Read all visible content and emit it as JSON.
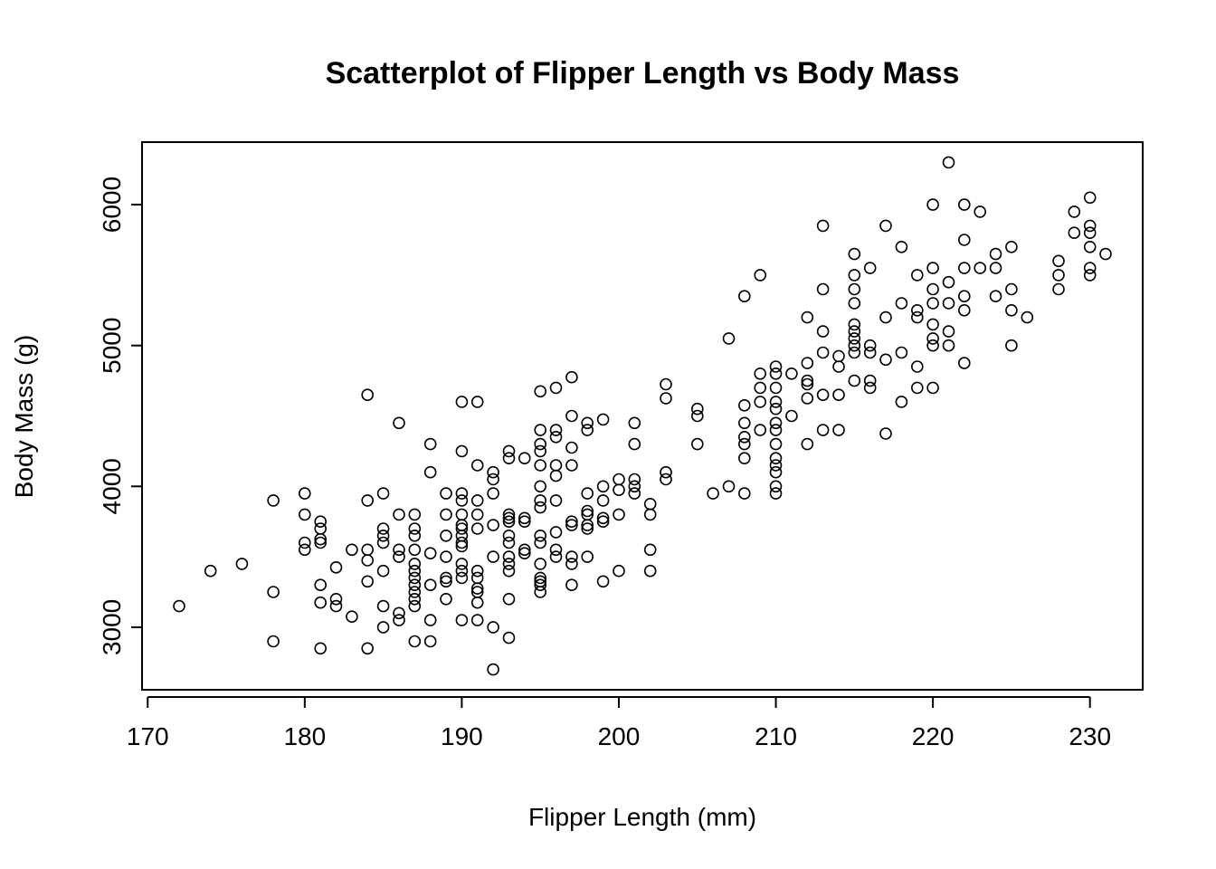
{
  "chart_data": {
    "type": "scatter",
    "title": "Scatterplot of Flipper Length vs Body Mass",
    "xlabel": "Flipper Length (mm)",
    "ylabel": "Body Mass (g)",
    "xlim": [
      172,
      231
    ],
    "ylim": [
      2700,
      6300
    ],
    "xticks": [
      170,
      180,
      190,
      200,
      210,
      220,
      230
    ],
    "yticks": [
      3000,
      4000,
      5000,
      6000
    ],
    "xtick_labels": [
      "170",
      "180",
      "190",
      "200",
      "210",
      "220",
      "230"
    ],
    "ytick_labels": [
      "3000",
      "4000",
      "5000",
      "6000"
    ],
    "grid": false,
    "legend": "none",
    "marker": "open-circle",
    "points": [
      [
        172,
        3150
      ],
      [
        174,
        3400
      ],
      [
        176,
        3450
      ],
      [
        178,
        3900
      ],
      [
        178,
        3250
      ],
      [
        178,
        2900
      ],
      [
        180,
        3950
      ],
      [
        180,
        3800
      ],
      [
        180,
        3600
      ],
      [
        180,
        3550
      ],
      [
        181,
        3750
      ],
      [
        181,
        3700
      ],
      [
        181,
        3625
      ],
      [
        181,
        3600
      ],
      [
        181,
        3300
      ],
      [
        181,
        3175
      ],
      [
        181,
        2850
      ],
      [
        182,
        3425
      ],
      [
        182,
        3200
      ],
      [
        182,
        3150
      ],
      [
        183,
        3550
      ],
      [
        183,
        3075
      ],
      [
        184,
        4650
      ],
      [
        184,
        3900
      ],
      [
        184,
        3550
      ],
      [
        184,
        3475
      ],
      [
        184,
        3325
      ],
      [
        184,
        2850
      ],
      [
        185,
        3950
      ],
      [
        185,
        3700
      ],
      [
        185,
        3650
      ],
      [
        185,
        3600
      ],
      [
        185,
        3400
      ],
      [
        185,
        3150
      ],
      [
        185,
        3000
      ],
      [
        186,
        4450
      ],
      [
        186,
        3800
      ],
      [
        186,
        3550
      ],
      [
        186,
        3500
      ],
      [
        186,
        3100
      ],
      [
        186,
        3050
      ],
      [
        187,
        3800
      ],
      [
        187,
        3700
      ],
      [
        187,
        3650
      ],
      [
        187,
        3550
      ],
      [
        187,
        3450
      ],
      [
        187,
        3400
      ],
      [
        187,
        3350
      ],
      [
        187,
        3300
      ],
      [
        187,
        3250
      ],
      [
        187,
        3200
      ],
      [
        187,
        3150
      ],
      [
        187,
        2900
      ],
      [
        188,
        4300
      ],
      [
        188,
        4100
      ],
      [
        188,
        3525
      ],
      [
        188,
        3300
      ],
      [
        188,
        3050
      ],
      [
        188,
        2900
      ],
      [
        189,
        3950
      ],
      [
        189,
        3800
      ],
      [
        189,
        3650
      ],
      [
        189,
        3500
      ],
      [
        189,
        3350
      ],
      [
        189,
        3325
      ],
      [
        189,
        3200
      ],
      [
        190,
        4600
      ],
      [
        190,
        4250
      ],
      [
        190,
        3950
      ],
      [
        190,
        3900
      ],
      [
        190,
        3800
      ],
      [
        190,
        3725
      ],
      [
        190,
        3700
      ],
      [
        190,
        3650
      ],
      [
        190,
        3600
      ],
      [
        190,
        3575
      ],
      [
        190,
        3450
      ],
      [
        190,
        3400
      ],
      [
        190,
        3350
      ],
      [
        190,
        3050
      ],
      [
        191,
        4600
      ],
      [
        191,
        4150
      ],
      [
        191,
        3900
      ],
      [
        191,
        3800
      ],
      [
        191,
        3700
      ],
      [
        191,
        3400
      ],
      [
        191,
        3350
      ],
      [
        191,
        3275
      ],
      [
        191,
        3250
      ],
      [
        191,
        3175
      ],
      [
        191,
        3050
      ],
      [
        192,
        4100
      ],
      [
        192,
        4050
      ],
      [
        192,
        3950
      ],
      [
        192,
        3725
      ],
      [
        192,
        3500
      ],
      [
        192,
        3000
      ],
      [
        192,
        2700
      ],
      [
        193,
        4250
      ],
      [
        193,
        4200
      ],
      [
        193,
        3800
      ],
      [
        193,
        3775
      ],
      [
        193,
        3750
      ],
      [
        193,
        3650
      ],
      [
        193,
        3600
      ],
      [
        193,
        3500
      ],
      [
        193,
        3450
      ],
      [
        193,
        3400
      ],
      [
        193,
        3200
      ],
      [
        193,
        2925
      ],
      [
        194,
        4200
      ],
      [
        194,
        3775
      ],
      [
        194,
        3750
      ],
      [
        194,
        3550
      ],
      [
        194,
        3525
      ],
      [
        195,
        4675
      ],
      [
        195,
        4400
      ],
      [
        195,
        4300
      ],
      [
        195,
        4250
      ],
      [
        195,
        4150
      ],
      [
        195,
        4000
      ],
      [
        195,
        3900
      ],
      [
        195,
        3850
      ],
      [
        195,
        3650
      ],
      [
        195,
        3600
      ],
      [
        195,
        3450
      ],
      [
        195,
        3350
      ],
      [
        195,
        3325
      ],
      [
        195,
        3300
      ],
      [
        195,
        3250
      ],
      [
        196,
        4700
      ],
      [
        196,
        4400
      ],
      [
        196,
        4350
      ],
      [
        196,
        4150
      ],
      [
        196,
        4075
      ],
      [
        196,
        3900
      ],
      [
        196,
        3675
      ],
      [
        196,
        3550
      ],
      [
        196,
        3500
      ],
      [
        197,
        4775
      ],
      [
        197,
        4500
      ],
      [
        197,
        4275
      ],
      [
        197,
        4150
      ],
      [
        197,
        3750
      ],
      [
        197,
        3725
      ],
      [
        197,
        3500
      ],
      [
        197,
        3450
      ],
      [
        197,
        3300
      ],
      [
        198,
        4450
      ],
      [
        198,
        4400
      ],
      [
        198,
        3950
      ],
      [
        198,
        3825
      ],
      [
        198,
        3800
      ],
      [
        198,
        3725
      ],
      [
        198,
        3700
      ],
      [
        198,
        3500
      ],
      [
        199,
        4475
      ],
      [
        199,
        4000
      ],
      [
        199,
        3900
      ],
      [
        199,
        3775
      ],
      [
        199,
        3750
      ],
      [
        199,
        3325
      ],
      [
        200,
        4050
      ],
      [
        200,
        3975
      ],
      [
        200,
        3800
      ],
      [
        200,
        3400
      ],
      [
        201,
        4450
      ],
      [
        201,
        4300
      ],
      [
        201,
        4050
      ],
      [
        201,
        4000
      ],
      [
        201,
        3950
      ],
      [
        202,
        3875
      ],
      [
        202,
        3800
      ],
      [
        202,
        3550
      ],
      [
        202,
        3400
      ],
      [
        203,
        4725
      ],
      [
        203,
        4625
      ],
      [
        203,
        4100
      ],
      [
        203,
        4050
      ],
      [
        205,
        4550
      ],
      [
        205,
        4500
      ],
      [
        205,
        4300
      ],
      [
        206,
        3950
      ],
      [
        207,
        5050
      ],
      [
        207,
        4000
      ],
      [
        208,
        5350
      ],
      [
        208,
        4575
      ],
      [
        208,
        4450
      ],
      [
        208,
        4350
      ],
      [
        208,
        4300
      ],
      [
        208,
        4200
      ],
      [
        208,
        3950
      ],
      [
        209,
        5500
      ],
      [
        209,
        4800
      ],
      [
        209,
        4700
      ],
      [
        209,
        4600
      ],
      [
        209,
        4400
      ],
      [
        210,
        4850
      ],
      [
        210,
        4800
      ],
      [
        210,
        4700
      ],
      [
        210,
        4600
      ],
      [
        210,
        4550
      ],
      [
        210,
        4450
      ],
      [
        210,
        4400
      ],
      [
        210,
        4300
      ],
      [
        210,
        4200
      ],
      [
        210,
        4150
      ],
      [
        210,
        4100
      ],
      [
        210,
        4000
      ],
      [
        210,
        3950
      ],
      [
        211,
        4800
      ],
      [
        211,
        4500
      ],
      [
        212,
        5200
      ],
      [
        212,
        4875
      ],
      [
        212,
        4750
      ],
      [
        212,
        4725
      ],
      [
        212,
        4625
      ],
      [
        212,
        4300
      ],
      [
        213,
        5850
      ],
      [
        213,
        5400
      ],
      [
        213,
        5100
      ],
      [
        213,
        4950
      ],
      [
        213,
        4650
      ],
      [
        213,
        4400
      ],
      [
        214,
        4925
      ],
      [
        214,
        4850
      ],
      [
        214,
        4650
      ],
      [
        214,
        4400
      ],
      [
        215,
        5650
      ],
      [
        215,
        5500
      ],
      [
        215,
        5400
      ],
      [
        215,
        5300
      ],
      [
        215,
        5150
      ],
      [
        215,
        5100
      ],
      [
        215,
        5050
      ],
      [
        215,
        5000
      ],
      [
        215,
        4950
      ],
      [
        215,
        4750
      ],
      [
        216,
        5550
      ],
      [
        216,
        5000
      ],
      [
        216,
        4950
      ],
      [
        216,
        4750
      ],
      [
        216,
        4700
      ],
      [
        217,
        5850
      ],
      [
        217,
        5200
      ],
      [
        217,
        4900
      ],
      [
        217,
        4375
      ],
      [
        218,
        5700
      ],
      [
        218,
        5300
      ],
      [
        218,
        4950
      ],
      [
        218,
        4600
      ],
      [
        219,
        5500
      ],
      [
        219,
        5250
      ],
      [
        219,
        5200
      ],
      [
        219,
        4850
      ],
      [
        219,
        4700
      ],
      [
        220,
        6000
      ],
      [
        220,
        5550
      ],
      [
        220,
        5400
      ],
      [
        220,
        5300
      ],
      [
        220,
        5150
      ],
      [
        220,
        5050
      ],
      [
        220,
        5000
      ],
      [
        220,
        4700
      ],
      [
        221,
        6300
      ],
      [
        221,
        5450
      ],
      [
        221,
        5300
      ],
      [
        221,
        5100
      ],
      [
        221,
        5000
      ],
      [
        222,
        6000
      ],
      [
        222,
        5750
      ],
      [
        222,
        5550
      ],
      [
        222,
        5350
      ],
      [
        222,
        5250
      ],
      [
        222,
        4875
      ],
      [
        223,
        5950
      ],
      [
        223,
        5550
      ],
      [
        224,
        5650
      ],
      [
        224,
        5550
      ],
      [
        224,
        5350
      ],
      [
        225,
        5700
      ],
      [
        225,
        5400
      ],
      [
        225,
        5250
      ],
      [
        225,
        5000
      ],
      [
        226,
        5200
      ],
      [
        228,
        5600
      ],
      [
        228,
        5500
      ],
      [
        228,
        5400
      ],
      [
        229,
        5950
      ],
      [
        229,
        5800
      ],
      [
        230,
        6050
      ],
      [
        230,
        5850
      ],
      [
        230,
        5800
      ],
      [
        230,
        5700
      ],
      [
        230,
        5550
      ],
      [
        230,
        5500
      ],
      [
        231,
        5650
      ]
    ]
  }
}
